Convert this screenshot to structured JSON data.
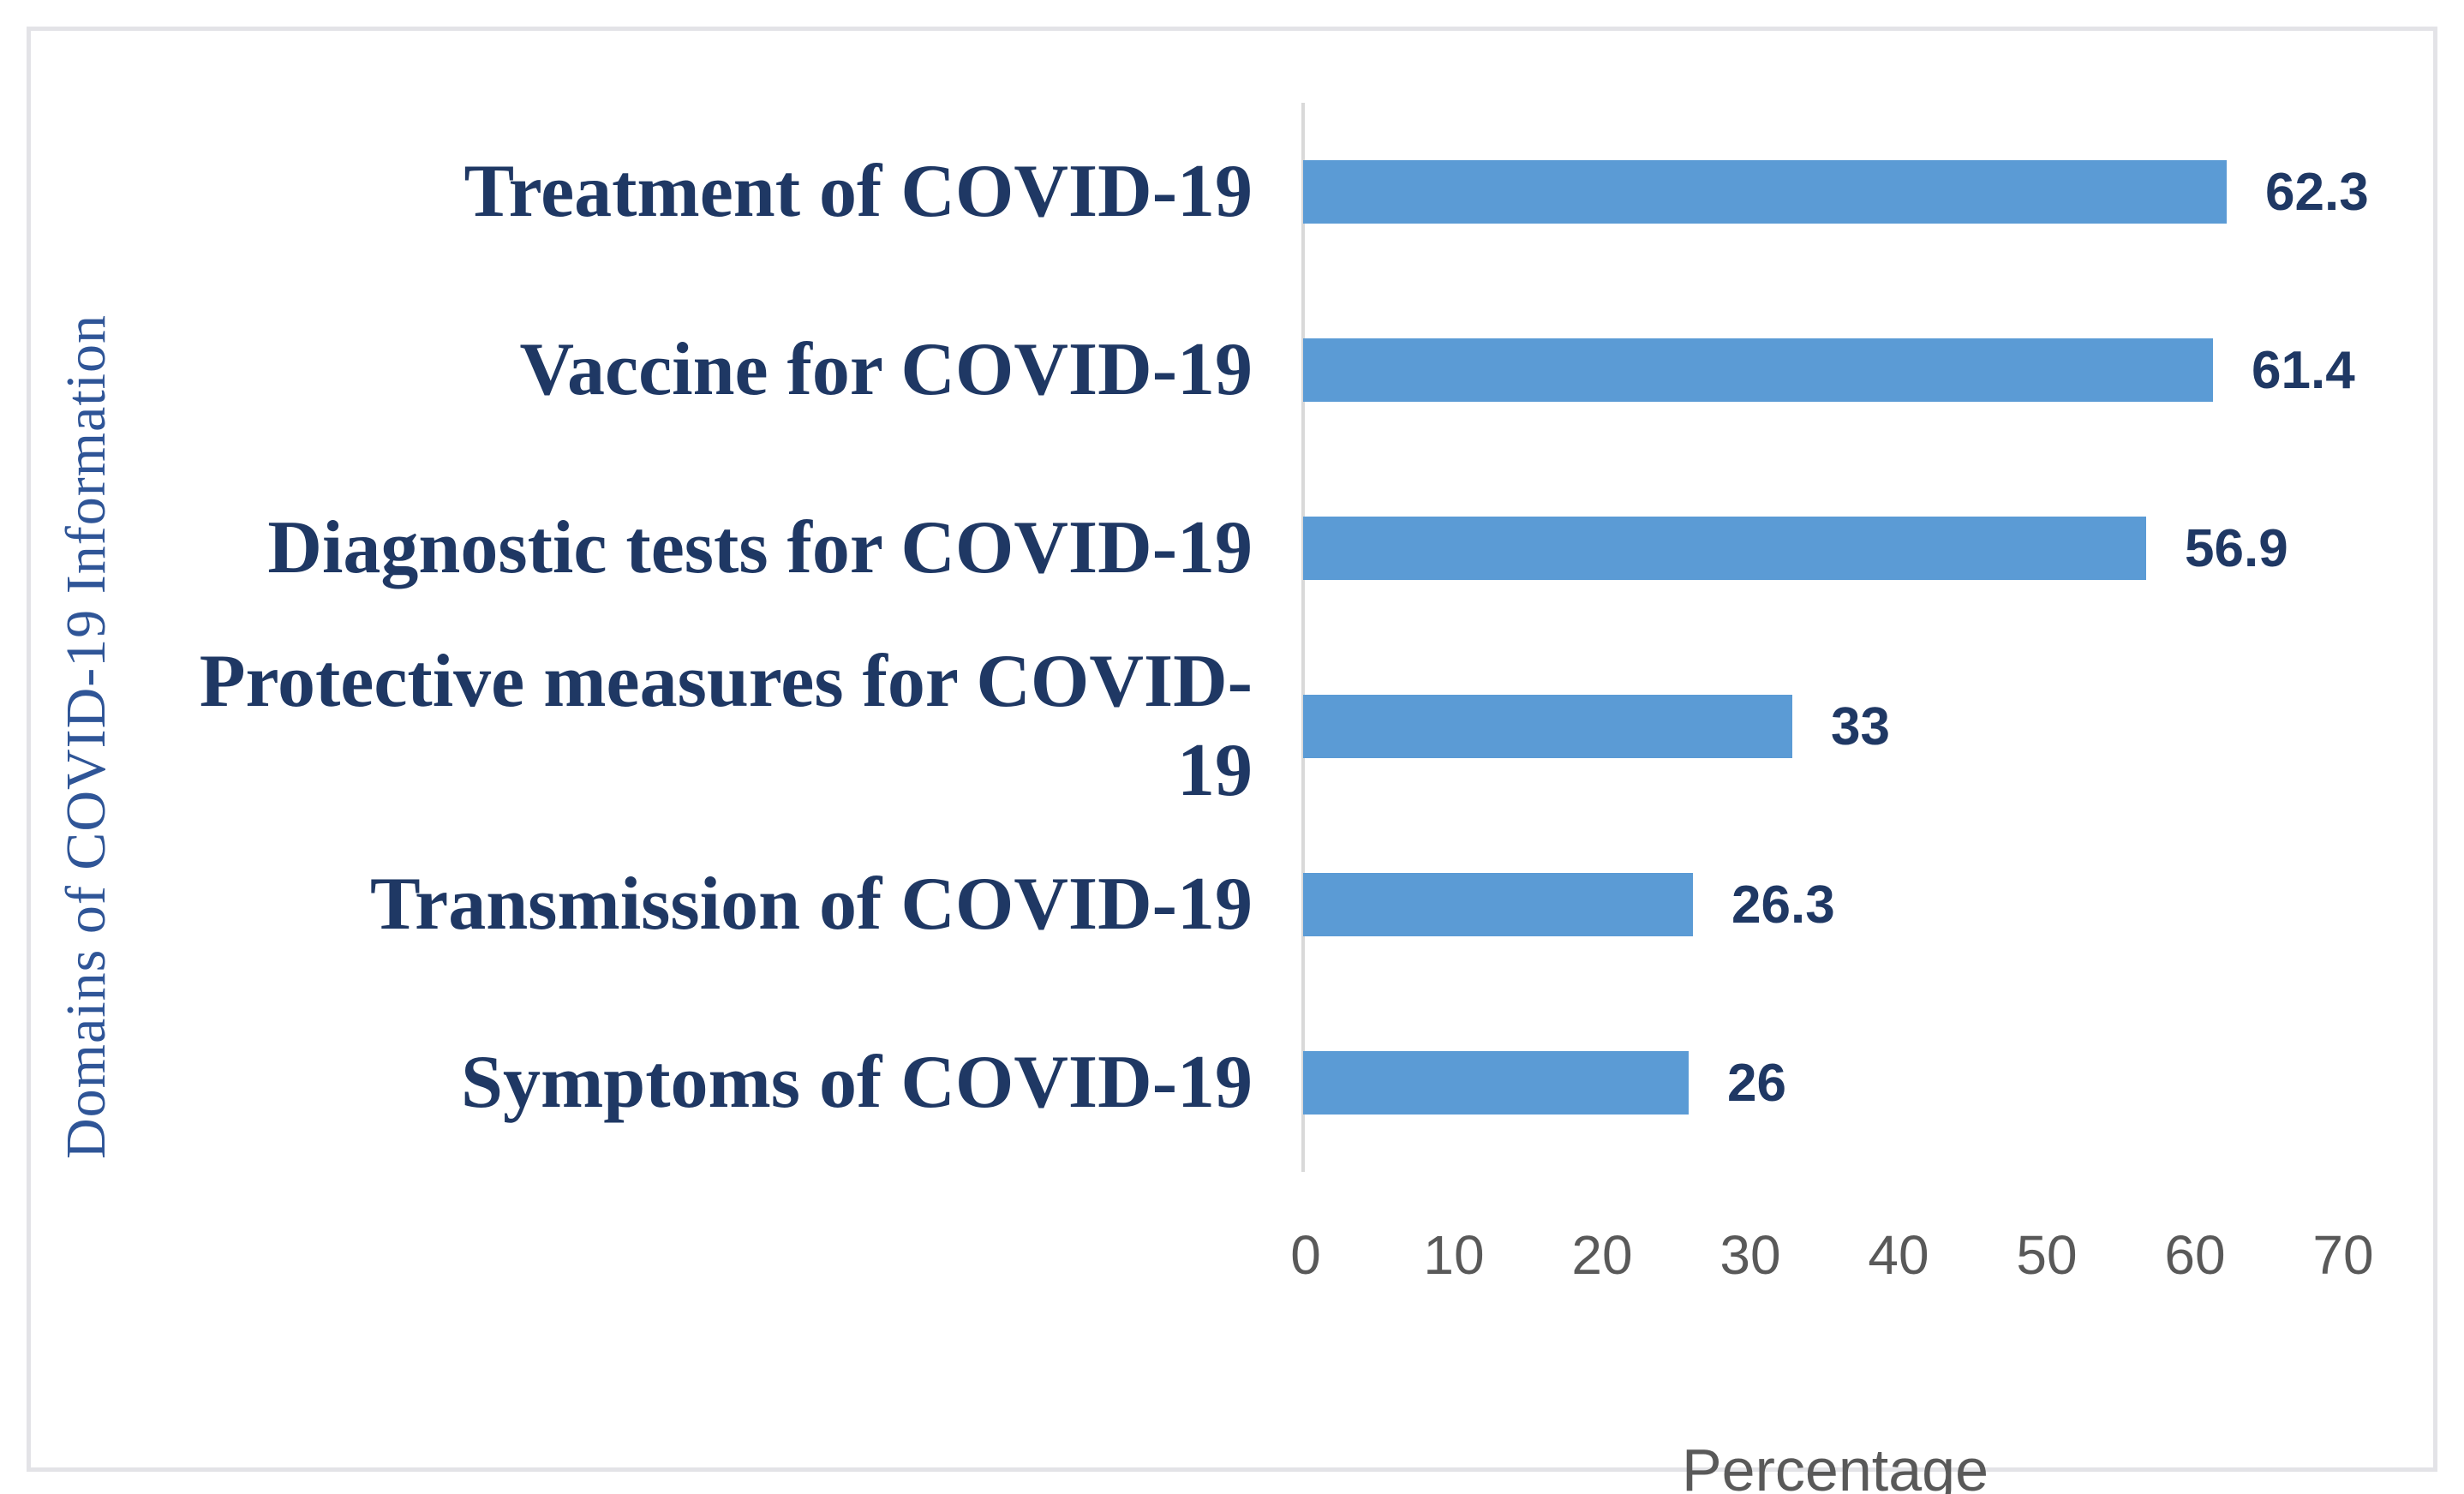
{
  "figure": {
    "y_axis_title": "Domains of COVID-19 Information",
    "x_axis_title": "Percentage"
  },
  "chart_data": {
    "type": "bar",
    "orientation": "horizontal",
    "title": "",
    "xlabel": "Percentage",
    "ylabel": "Domains of COVID-19 Information",
    "categories": [
      "Treatment of COVID-19",
      "Vaccine for COVID-19",
      "Diagnostic tests for COVID-19",
      "Protective measures for COVID-19",
      "Transmission of COVID-19",
      "Symptoms of COVID-19"
    ],
    "values": [
      62.3,
      61.4,
      56.9,
      33,
      26.3,
      26
    ],
    "value_labels": [
      "62.3",
      "61.4",
      "56.9",
      "33",
      "26.3",
      "26"
    ],
    "x_ticks": [
      "0",
      "10",
      "20",
      "30",
      "40",
      "50",
      "60",
      "70"
    ],
    "xlim": [
      0,
      70
    ],
    "grid": false,
    "legend": "none",
    "colors": {
      "bar": "#5B9BD5",
      "category_label": "#1F3864",
      "value_label": "#1F3864",
      "y_axis_title": "#2F5597",
      "tick_label": "#595959",
      "x_axis_title": "#595959",
      "axis_line": "#D9D9D9"
    }
  }
}
